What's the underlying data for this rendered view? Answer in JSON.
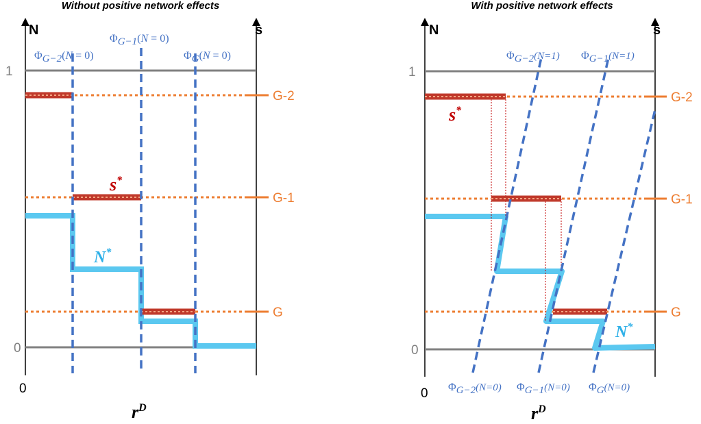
{
  "left_panel": {
    "title": "Without positive network effects",
    "y_axis_label": "N",
    "right_axis_label": "s",
    "x_axis_label": "r",
    "x_axis_label_sup": "D",
    "origin_label": "0",
    "tick_one": "1",
    "tick_zero": "0",
    "group_labels": [
      "G-2",
      "G-1",
      "G"
    ],
    "threshold_labels": [
      "Φ_{G−2}(N = 0)",
      "Φ_{G−1}(N = 0)",
      "Φ_G(N = 0)"
    ],
    "s_star_label": "s",
    "n_star_label": "N",
    "star": "*"
  },
  "right_panel": {
    "title": "With positive network effects",
    "y_axis_label": "N",
    "right_axis_label": "s",
    "x_axis_label": "r",
    "x_axis_label_sup": "D",
    "origin_label": "0",
    "tick_one": "1",
    "tick_zero": "0",
    "group_labels": [
      "G-2",
      "G-1",
      "G"
    ],
    "top_threshold_labels": [
      "Φ_{G−2}(N=1)",
      "Φ_{G−1}(N=1)"
    ],
    "bottom_threshold_labels": [
      "Φ_{G−2}(N=0)",
      "Φ_{G−1}(N=0)",
      "Φ_G(N=0)"
    ],
    "s_star_label": "s",
    "n_star_label": "N",
    "star": "*"
  },
  "colors": {
    "axis": "#000000",
    "reference_line": "#808080",
    "group_line": "#ED7D31",
    "threshold_line": "#4472C4",
    "s_star": "#C0392B",
    "n_star": "#5BC8F0"
  }
}
